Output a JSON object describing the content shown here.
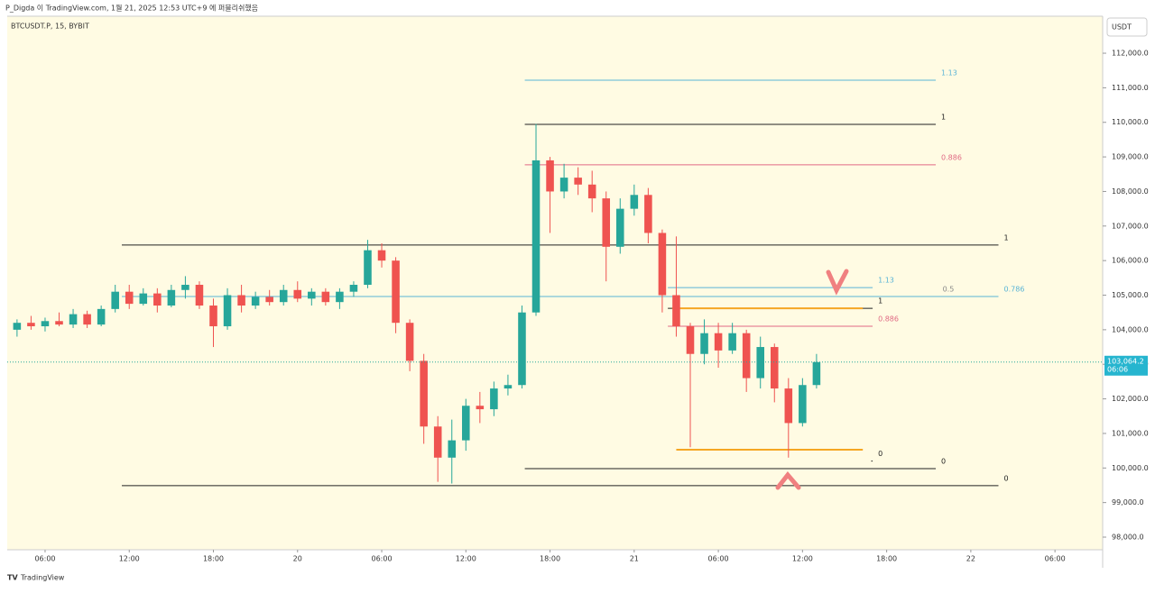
{
  "header": "P_Digda 이 TradingView.com, 1월 21, 2025 12:53 UTC+9 에 퍼블리쉬했음",
  "footer": "TradingView",
  "chart_data": {
    "type": "candlestick",
    "symbol": "BTCUSDT.P, 15, BYBIT",
    "currency": "USDT",
    "up_color": "#26a69a",
    "down_color": "#ef5350",
    "xlim": [
      3.3,
      81.4
    ],
    "xticks": [
      {
        "value": 6,
        "label": "06:00"
      },
      {
        "value": 12,
        "label": "12:00"
      },
      {
        "value": 18,
        "label": "18:00"
      },
      {
        "value": 24,
        "label": "20"
      },
      {
        "value": 30,
        "label": "06:00"
      },
      {
        "value": 36,
        "label": "12:00"
      },
      {
        "value": 42,
        "label": "18:00"
      },
      {
        "value": 48,
        "label": "21"
      },
      {
        "value": 54,
        "label": "06:00"
      },
      {
        "value": 60,
        "label": "12:00"
      },
      {
        "value": 66,
        "label": "18:00"
      },
      {
        "value": 72,
        "label": "22"
      },
      {
        "value": 78,
        "label": "06:00"
      }
    ],
    "ylim": [
      97635,
      113070
    ],
    "yticks": [
      {
        "value": 98000,
        "label": "98,000.0"
      },
      {
        "value": 99000,
        "label": "99,000.0"
      },
      {
        "value": 100000,
        "label": "100,000.0"
      },
      {
        "value": 101000,
        "label": "101,000.0"
      },
      {
        "value": 102000,
        "label": "102,000.0"
      },
      {
        "value": 103000,
        "label": "103,000.0"
      },
      {
        "value": 104000,
        "label": "104,000.0"
      },
      {
        "value": 105000,
        "label": "105,000.0"
      },
      {
        "value": 106000,
        "label": "106,000.0"
      },
      {
        "value": 107000,
        "label": "107,000.0"
      },
      {
        "value": 108000,
        "label": "108,000.0"
      },
      {
        "value": 109000,
        "label": "109,000.0"
      },
      {
        "value": 110000,
        "label": "110,000.0"
      },
      {
        "value": 111000,
        "label": "111,000.0"
      },
      {
        "value": 112000,
        "label": "112,000.0"
      }
    ],
    "last_price": {
      "value": 103064.2,
      "label": "103,064.2"
    },
    "countdown": "06:06",
    "x": [
      4,
      5,
      6,
      7,
      8,
      9,
      10,
      11,
      12,
      13,
      14,
      15,
      16,
      17,
      18,
      19,
      20,
      21,
      22,
      23,
      24,
      25,
      26,
      27,
      28,
      29,
      30,
      31,
      32,
      33,
      34,
      35,
      36,
      37,
      38,
      39,
      40,
      41,
      42,
      43,
      44,
      45,
      46,
      47,
      48,
      49,
      50,
      51,
      52,
      53,
      54,
      55,
      56,
      57,
      58,
      59,
      60,
      61
    ],
    "open": [
      104000,
      104200,
      104100,
      104250,
      104150,
      104450,
      104150,
      104600,
      105100,
      104750,
      105050,
      104700,
      105150,
      105300,
      104700,
      104100,
      105000,
      104700,
      104950,
      104800,
      105150,
      104900,
      105100,
      104800,
      105100,
      105300,
      106300,
      106000,
      104200,
      103100,
      101200,
      100300,
      100800,
      101800,
      101700,
      102300,
      102400,
      104500,
      108900,
      108000,
      108400,
      108200,
      107800,
      106400,
      107500,
      107900,
      106800,
      105000,
      104100,
      103300,
      103900,
      103400,
      103900,
      102600,
      103500,
      102300,
      101300,
      102400
    ],
    "high": [
      104300,
      104400,
      104350,
      104500,
      104600,
      104550,
      104700,
      105300,
      105300,
      105200,
      105200,
      105300,
      105550,
      105400,
      104900,
      105200,
      105300,
      105100,
      105150,
      105300,
      105400,
      105200,
      105200,
      105200,
      105400,
      106600,
      106500,
      106100,
      104300,
      103300,
      101500,
      101400,
      102000,
      102200,
      102500,
      102700,
      104700,
      109950,
      109000,
      108800,
      108700,
      108600,
      108000,
      107800,
      108200,
      108100,
      106900,
      106700,
      104200,
      104300,
      104200,
      104200,
      104000,
      103800,
      103600,
      102600,
      102600,
      103300
    ],
    "low": [
      103800,
      104000,
      103950,
      104100,
      104050,
      104050,
      104100,
      104500,
      104600,
      104700,
      104500,
      104650,
      104900,
      104600,
      103500,
      104000,
      104500,
      104600,
      104700,
      104700,
      104800,
      104700,
      104700,
      104600,
      104950,
      105200,
      105800,
      103900,
      102800,
      100700,
      99600,
      99550,
      100500,
      101300,
      101500,
      102100,
      102300,
      104400,
      106800,
      107800,
      107900,
      107400,
      105400,
      106200,
      107300,
      106500,
      104500,
      103800,
      100600,
      103000,
      102900,
      103300,
      102200,
      102300,
      101900,
      100300,
      101200,
      102300
    ],
    "close": [
      104200,
      104100,
      104250,
      104150,
      104450,
      104150,
      104600,
      105100,
      104750,
      105050,
      104700,
      105150,
      105300,
      104700,
      104100,
      105000,
      104700,
      104950,
      104800,
      105150,
      104900,
      105100,
      104800,
      105100,
      105300,
      106300,
      106000,
      104200,
      103100,
      101200,
      100300,
      100800,
      101800,
      101700,
      102300,
      102400,
      104500,
      108900,
      108000,
      108400,
      108200,
      107800,
      106400,
      107500,
      107900,
      106800,
      105000,
      104100,
      103300,
      103900,
      103400,
      103900,
      102600,
      103500,
      102300,
      101300,
      102400,
      103064.2
    ],
    "levels": [
      {
        "label": "1",
        "value": 106450,
        "x": [
          11.47,
          73.97
        ],
        "color": "#222222"
      },
      {
        "label": "0",
        "value": 99490,
        "x": [
          11.47,
          73.97
        ],
        "color": "#222222"
      },
      {
        "label": "0.5",
        "value": 104960,
        "x": [
          11.47,
          69.6
        ],
        "color": "#888888"
      },
      {
        "label": "0.786",
        "value": 104960,
        "x": [
          11.47,
          73.97
        ],
        "color": "#5ab4d6"
      },
      {
        "label": "1.13",
        "value": 111220,
        "x": [
          40.2,
          69.5
        ],
        "color": "#5ab4d6"
      },
      {
        "label": "1",
        "value": 109940,
        "x": [
          40.2,
          69.5
        ],
        "color": "#222222"
      },
      {
        "label": "0.886",
        "value": 108770,
        "x": [
          40.2,
          69.5
        ],
        "color": "#e06a84"
      },
      {
        "label": "0",
        "value": 99980,
        "x": [
          40.2,
          69.5
        ],
        "color": "#222222"
      },
      {
        "label": "1.13",
        "value": 105220,
        "x": [
          50.4,
          65.0
        ],
        "color": "#5ab4d6"
      },
      {
        "label": "1",
        "value": 104620,
        "x": [
          50.4,
          65.0
        ],
        "color": "#222222"
      },
      {
        "label": "0.886",
        "value": 104100,
        "x": [
          50.4,
          65.0
        ],
        "color": "#e06a84"
      },
      {
        "value": 104620,
        "x": [
          50.7,
          64.3
        ],
        "color": "#f5a623"
      },
      {
        "value": 100530,
        "x": [
          51.0,
          64.3
        ],
        "color": "#f5a623"
      },
      {
        "label": "0",
        "value": 100200,
        "x": [
          64.9,
          65.0
        ],
        "color": "#222222"
      }
    ]
  }
}
